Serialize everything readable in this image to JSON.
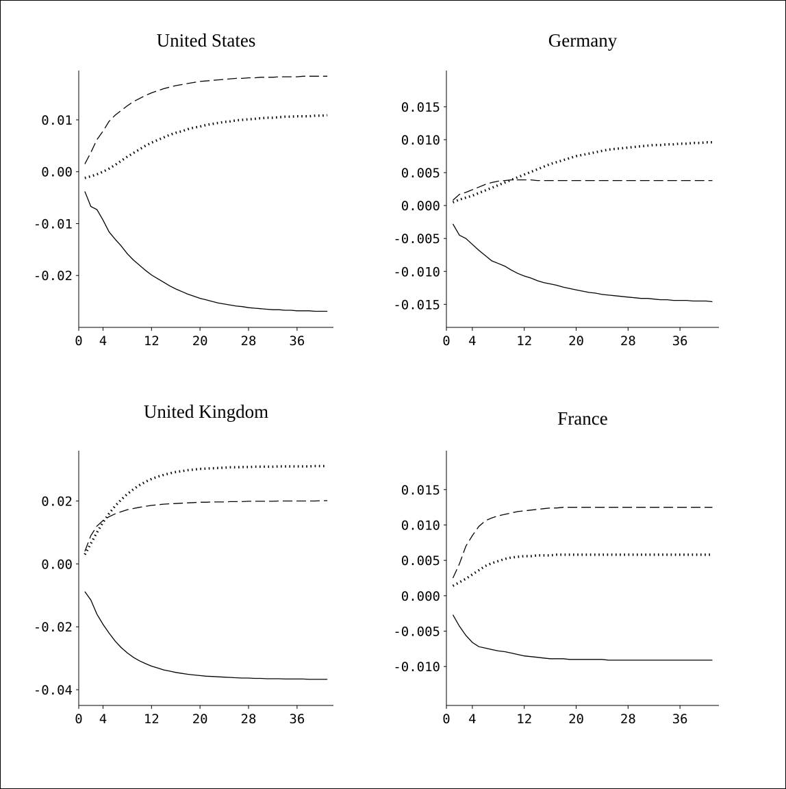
{
  "chart_data": [
    {
      "type": "line",
      "title": "United States",
      "xlim": [
        0,
        42
      ],
      "ylim": [
        -0.03,
        0.0195
      ],
      "xticks": [
        0,
        4,
        12,
        20,
        28,
        36
      ],
      "xtick_labels": [
        "0",
        "4",
        "12",
        "20",
        "28",
        "36"
      ],
      "yticks": [
        0.01,
        0.0,
        -0.01,
        -0.02
      ],
      "ytick_labels": [
        "0.01",
        "0.00",
        "-0.01",
        "-0.02"
      ],
      "x": [
        1,
        2,
        3,
        4,
        5,
        6,
        7,
        8,
        9,
        10,
        11,
        12,
        13,
        14,
        15,
        16,
        17,
        18,
        19,
        20,
        21,
        22,
        23,
        24,
        25,
        26,
        27,
        28,
        29,
        30,
        31,
        32,
        33,
        34,
        35,
        36,
        37,
        38,
        39,
        40,
        41
      ],
      "series": [
        {
          "style": "solid",
          "values": [
            -0.0038,
            -0.0067,
            -0.0073,
            -0.0093,
            -0.0116,
            -0.013,
            -0.0143,
            -0.0158,
            -0.017,
            -0.018,
            -0.019,
            -0.0199,
            -0.0206,
            -0.0213,
            -0.022,
            -0.0226,
            -0.0231,
            -0.0236,
            -0.024,
            -0.0244,
            -0.0247,
            -0.025,
            -0.0253,
            -0.0255,
            -0.0257,
            -0.0259,
            -0.026,
            -0.0262,
            -0.0263,
            -0.0264,
            -0.0265,
            -0.0266,
            -0.0266,
            -0.0267,
            -0.0267,
            -0.0268,
            -0.0268,
            -0.0268,
            -0.0269,
            -0.0269,
            -0.0269
          ]
        },
        {
          "style": "dashed",
          "values": [
            0.0015,
            0.0037,
            0.0062,
            0.0078,
            0.0097,
            0.0109,
            0.0118,
            0.0127,
            0.0135,
            0.0141,
            0.0147,
            0.0152,
            0.0156,
            0.016,
            0.0163,
            0.0166,
            0.0168,
            0.017,
            0.0172,
            0.0174,
            0.0175,
            0.0176,
            0.0177,
            0.0178,
            0.0179,
            0.018,
            0.018,
            0.0181,
            0.0181,
            0.0182,
            0.0182,
            0.0182,
            0.0183,
            0.0183,
            0.0183,
            0.0183,
            0.0184,
            0.0184,
            0.0184,
            0.0184,
            0.0184
          ]
        },
        {
          "style": "dotted",
          "values": [
            -0.0012,
            -0.0009,
            -0.0005,
            0.0,
            0.0006,
            0.0013,
            0.0021,
            0.0029,
            0.0036,
            0.0043,
            0.005,
            0.0056,
            0.0061,
            0.0066,
            0.0071,
            0.0075,
            0.0078,
            0.0082,
            0.0085,
            0.0087,
            0.009,
            0.0092,
            0.0094,
            0.0096,
            0.0097,
            0.0099,
            0.01,
            0.0101,
            0.0102,
            0.0103,
            0.0104,
            0.0104,
            0.0105,
            0.0106,
            0.0106,
            0.0107,
            0.0107,
            0.0107,
            0.0108,
            0.0108,
            0.0109
          ]
        }
      ]
    },
    {
      "type": "line",
      "title": "Germany",
      "xlim": [
        0,
        42
      ],
      "ylim": [
        -0.0185,
        0.0205
      ],
      "xticks": [
        0,
        4,
        12,
        20,
        28,
        36
      ],
      "xtick_labels": [
        "0",
        "4",
        "12",
        "20",
        "28",
        "36"
      ],
      "yticks": [
        0.015,
        0.01,
        0.005,
        0.0,
        -0.005,
        -0.01,
        -0.015
      ],
      "ytick_labels": [
        "0.015",
        "0.010",
        "0.005",
        "0.000",
        "-0.005",
        "-0.010",
        "-0.015"
      ],
      "x": [
        1,
        2,
        3,
        4,
        5,
        6,
        7,
        8,
        9,
        10,
        11,
        12,
        13,
        14,
        15,
        16,
        17,
        18,
        19,
        20,
        21,
        22,
        23,
        24,
        25,
        26,
        27,
        28,
        29,
        30,
        31,
        32,
        33,
        34,
        35,
        36,
        37,
        38,
        39,
        40,
        41
      ],
      "series": [
        {
          "style": "solid",
          "values": [
            -0.0028,
            -0.0045,
            -0.005,
            -0.0059,
            -0.0068,
            -0.0076,
            -0.0084,
            -0.0088,
            -0.0092,
            -0.0098,
            -0.0103,
            -0.0107,
            -0.011,
            -0.0114,
            -0.0117,
            -0.0119,
            -0.0121,
            -0.0124,
            -0.0126,
            -0.0128,
            -0.013,
            -0.0132,
            -0.0133,
            -0.0135,
            -0.0136,
            -0.0137,
            -0.0138,
            -0.0139,
            -0.014,
            -0.0141,
            -0.0141,
            -0.0142,
            -0.0143,
            -0.0143,
            -0.0144,
            -0.0144,
            -0.0144,
            -0.0145,
            -0.0145,
            -0.0145,
            -0.0146
          ]
        },
        {
          "style": "dashed",
          "values": [
            0.0008,
            0.0017,
            0.002,
            0.0024,
            0.0028,
            0.0032,
            0.0035,
            0.0037,
            0.0038,
            0.0039,
            0.0039,
            0.0039,
            0.0039,
            0.0038,
            0.0038,
            0.0038,
            0.0038,
            0.0038,
            0.0038,
            0.0038,
            0.0038,
            0.0038,
            0.0038,
            0.0038,
            0.0038,
            0.0038,
            0.0038,
            0.0038,
            0.0038,
            0.0038,
            0.0038,
            0.0038,
            0.0038,
            0.0038,
            0.0038,
            0.0038,
            0.0038,
            0.0038,
            0.0038,
            0.0038,
            0.0038
          ]
        },
        {
          "style": "dotted",
          "values": [
            0.0005,
            0.0009,
            0.0012,
            0.0015,
            0.0019,
            0.0023,
            0.0027,
            0.0031,
            0.0035,
            0.0039,
            0.0043,
            0.0047,
            0.0051,
            0.0055,
            0.0059,
            0.0063,
            0.0066,
            0.0069,
            0.0072,
            0.0075,
            0.0077,
            0.0079,
            0.0081,
            0.0083,
            0.0085,
            0.0086,
            0.0087,
            0.0088,
            0.0089,
            0.009,
            0.0091,
            0.0092,
            0.0092,
            0.0093,
            0.0093,
            0.0094,
            0.0094,
            0.0095,
            0.0095,
            0.0096,
            0.0096
          ]
        }
      ]
    },
    {
      "type": "line",
      "title": "United Kingdom",
      "xlim": [
        0,
        42
      ],
      "ylim": [
        -0.045,
        0.036
      ],
      "xticks": [
        0,
        4,
        12,
        20,
        28,
        36
      ],
      "xtick_labels": [
        "0",
        "4",
        "12",
        "20",
        "28",
        "36"
      ],
      "yticks": [
        0.02,
        0.0,
        -0.02,
        -0.04
      ],
      "ytick_labels": [
        "0.02",
        "0.00",
        "-0.02",
        "-0.04"
      ],
      "x": [
        1,
        2,
        3,
        4,
        5,
        6,
        7,
        8,
        9,
        10,
        11,
        12,
        13,
        14,
        15,
        16,
        17,
        18,
        19,
        20,
        21,
        22,
        23,
        24,
        25,
        26,
        27,
        28,
        29,
        30,
        31,
        32,
        33,
        34,
        35,
        36,
        37,
        38,
        39,
        40,
        41
      ],
      "series": [
        {
          "style": "solid",
          "values": [
            -0.0088,
            -0.0115,
            -0.016,
            -0.0192,
            -0.022,
            -0.0245,
            -0.0266,
            -0.0283,
            -0.0297,
            -0.0308,
            -0.0317,
            -0.0325,
            -0.0331,
            -0.0337,
            -0.0341,
            -0.0345,
            -0.0348,
            -0.0351,
            -0.0353,
            -0.0355,
            -0.0357,
            -0.0358,
            -0.0359,
            -0.036,
            -0.0361,
            -0.0362,
            -0.0363,
            -0.0363,
            -0.0364,
            -0.0364,
            -0.0365,
            -0.0365,
            -0.0365,
            -0.0366,
            -0.0366,
            -0.0366,
            -0.0366,
            -0.0367,
            -0.0367,
            -0.0367,
            -0.0367
          ]
        },
        {
          "style": "dashed",
          "values": [
            0.004,
            0.009,
            0.012,
            0.0138,
            0.015,
            0.0159,
            0.0166,
            0.0172,
            0.0176,
            0.018,
            0.0183,
            0.0186,
            0.0188,
            0.019,
            0.0191,
            0.0192,
            0.0193,
            0.0194,
            0.0195,
            0.0196,
            0.0196,
            0.0197,
            0.0197,
            0.0197,
            0.0198,
            0.0198,
            0.0198,
            0.0199,
            0.0199,
            0.0199,
            0.0199,
            0.0199,
            0.02,
            0.02,
            0.02,
            0.02,
            0.02,
            0.02,
            0.02,
            0.0201,
            0.0201
          ]
        },
        {
          "style": "dotted",
          "values": [
            0.003,
            0.0065,
            0.01,
            0.0132,
            0.016,
            0.0184,
            0.0204,
            0.0222,
            0.0237,
            0.025,
            0.0261,
            0.027,
            0.0277,
            0.0283,
            0.0288,
            0.0292,
            0.0295,
            0.0298,
            0.03,
            0.0302,
            0.0303,
            0.0304,
            0.0305,
            0.0306,
            0.0307,
            0.0307,
            0.0308,
            0.0308,
            0.0309,
            0.0309,
            0.0309,
            0.0309,
            0.031,
            0.031,
            0.031,
            0.031,
            0.031,
            0.031,
            0.0311,
            0.0311,
            0.0311
          ]
        }
      ]
    },
    {
      "type": "line",
      "title": "France",
      "xlim": [
        0,
        42
      ],
      "ylim": [
        -0.0155,
        0.0205
      ],
      "xticks": [
        0,
        4,
        12,
        20,
        28,
        36
      ],
      "xtick_labels": [
        "0",
        "4",
        "12",
        "20",
        "28",
        "36"
      ],
      "yticks": [
        0.015,
        0.01,
        0.005,
        0.0,
        -0.005,
        -0.01
      ],
      "ytick_labels": [
        "0.015",
        "0.010",
        "0.005",
        "0.000",
        "-0.005",
        "-0.010"
      ],
      "x": [
        1,
        2,
        3,
        4,
        5,
        6,
        7,
        8,
        9,
        10,
        11,
        12,
        13,
        14,
        15,
        16,
        17,
        18,
        19,
        20,
        21,
        22,
        23,
        24,
        25,
        26,
        27,
        28,
        29,
        30,
        31,
        32,
        33,
        34,
        35,
        36,
        37,
        38,
        39,
        40,
        41
      ],
      "series": [
        {
          "style": "solid",
          "values": [
            -0.0027,
            -0.0043,
            -0.0056,
            -0.0066,
            -0.0072,
            -0.0074,
            -0.0076,
            -0.0078,
            -0.0079,
            -0.0081,
            -0.0083,
            -0.0085,
            -0.0086,
            -0.0087,
            -0.0088,
            -0.0089,
            -0.0089,
            -0.0089,
            -0.009,
            -0.009,
            -0.009,
            -0.009,
            -0.009,
            -0.009,
            -0.0091,
            -0.0091,
            -0.0091,
            -0.0091,
            -0.0091,
            -0.0091,
            -0.0091,
            -0.0091,
            -0.0091,
            -0.0091,
            -0.0091,
            -0.0091,
            -0.0091,
            -0.0091,
            -0.0091,
            -0.0091,
            -0.0091
          ]
        },
        {
          "style": "dashed",
          "values": [
            0.0025,
            0.0045,
            0.007,
            0.0085,
            0.0098,
            0.0106,
            0.011,
            0.0113,
            0.0115,
            0.0117,
            0.0119,
            0.012,
            0.0121,
            0.0122,
            0.0123,
            0.0124,
            0.0124,
            0.0125,
            0.0125,
            0.0125,
            0.0125,
            0.0125,
            0.0125,
            0.0125,
            0.0125,
            0.0125,
            0.0125,
            0.0125,
            0.0125,
            0.0125,
            0.0125,
            0.0125,
            0.0125,
            0.0125,
            0.0125,
            0.0125,
            0.0125,
            0.0125,
            0.0125,
            0.0125,
            0.0125
          ]
        },
        {
          "style": "dotted",
          "values": [
            0.0014,
            0.0019,
            0.0024,
            0.003,
            0.0036,
            0.0042,
            0.0046,
            0.0049,
            0.0052,
            0.0054,
            0.0055,
            0.0056,
            0.0056,
            0.0057,
            0.0057,
            0.0057,
            0.0058,
            0.0058,
            0.0058,
            0.0058,
            0.0058,
            0.0058,
            0.0058,
            0.0058,
            0.0058,
            0.0058,
            0.0058,
            0.0058,
            0.0058,
            0.0058,
            0.0058,
            0.0058,
            0.0058,
            0.0058,
            0.0058,
            0.0058,
            0.0058,
            0.0058,
            0.0058,
            0.0058,
            0.0058
          ]
        }
      ]
    }
  ]
}
